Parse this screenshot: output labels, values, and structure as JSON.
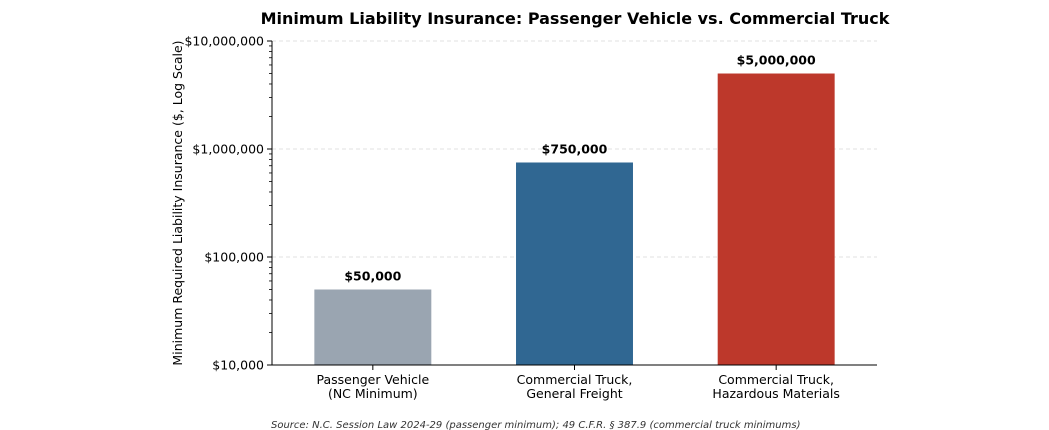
{
  "chart_data": {
    "type": "bar",
    "title": "Minimum Liability Insurance: Passenger Vehicle vs. Commercial Truck",
    "ylabel": "Minimum Required Liability Insurance ($, Log Scale)",
    "xlabel": "",
    "y_scale": "log",
    "ylim": [
      10000,
      10000000
    ],
    "grid": "horizontal dashed",
    "categories": [
      [
        "Passenger Vehicle",
        "(NC Minimum)"
      ],
      [
        "Commercial Truck,",
        "General Freight"
      ],
      [
        "Commercial Truck,",
        "Hazardous Materials"
      ]
    ],
    "values": [
      50000,
      750000,
      5000000
    ],
    "value_labels": [
      "$50,000",
      "$750,000",
      "$5,000,000"
    ],
    "colors": [
      "#9aa5b1",
      "#306792",
      "#bd382b"
    ],
    "y_ticks": [
      {
        "value": 10000,
        "label": "$10,000"
      },
      {
        "value": 100000,
        "label": "$100,000"
      },
      {
        "value": 1000000,
        "label": "$1,000,000"
      },
      {
        "value": 10000000,
        "label": "$10,000,000"
      }
    ],
    "source": "Source: N.C. Session Law 2024-29 (passenger minimum); 49 C.F.R. § 387.9 (commercial truck minimums)"
  }
}
